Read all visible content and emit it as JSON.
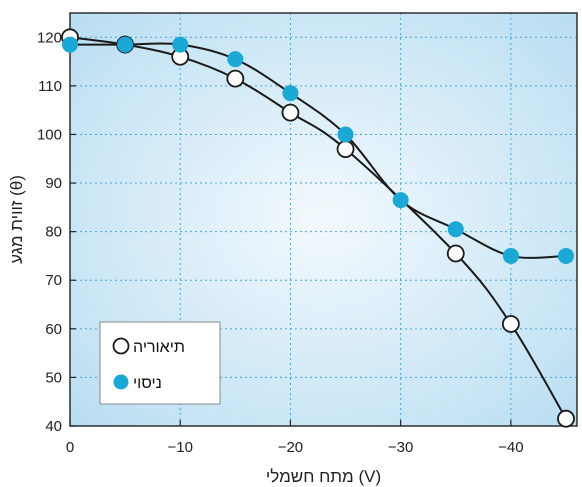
{
  "chart_data": {
    "type": "line",
    "xlabel": "מתח חשמלי (V)",
    "ylabel": "זווית מגע (θ)",
    "xlim": [
      0,
      -46
    ],
    "ylim": [
      40,
      125
    ],
    "xticks": [
      0,
      -10,
      -20,
      -30,
      -40
    ],
    "xtick_labels": [
      "0",
      "−10",
      "−20",
      "−30",
      "−40"
    ],
    "yticks": [
      40,
      50,
      60,
      70,
      80,
      90,
      100,
      110,
      120
    ],
    "grid": true,
    "legend": "bottom-left",
    "series": [
      {
        "name": "תיאוריה",
        "marker": "open-circle",
        "x": [
          0,
          -5,
          -10,
          -15,
          -20,
          -25,
          -35,
          -40,
          -45
        ],
        "y": [
          120,
          118.5,
          116,
          111.5,
          104.5,
          97,
          75.5,
          61,
          41.5
        ]
      },
      {
        "name": "ניסוי",
        "marker": "filled-circle",
        "x": [
          0,
          -5,
          -10,
          -15,
          -20,
          -25,
          -30,
          -35,
          -40,
          -45
        ],
        "y": [
          118.5,
          118.5,
          118.5,
          115.5,
          108.5,
          100,
          86.5,
          80.5,
          75,
          75
        ]
      }
    ]
  },
  "colors": {
    "experiment_fill": "#1aa9d6",
    "theory_fill": "#ffffff",
    "line": "#1a1a1a",
    "grid": "#4aa3d9",
    "bg_center": "#f3f9fd",
    "bg_edge": "#b9def2"
  }
}
